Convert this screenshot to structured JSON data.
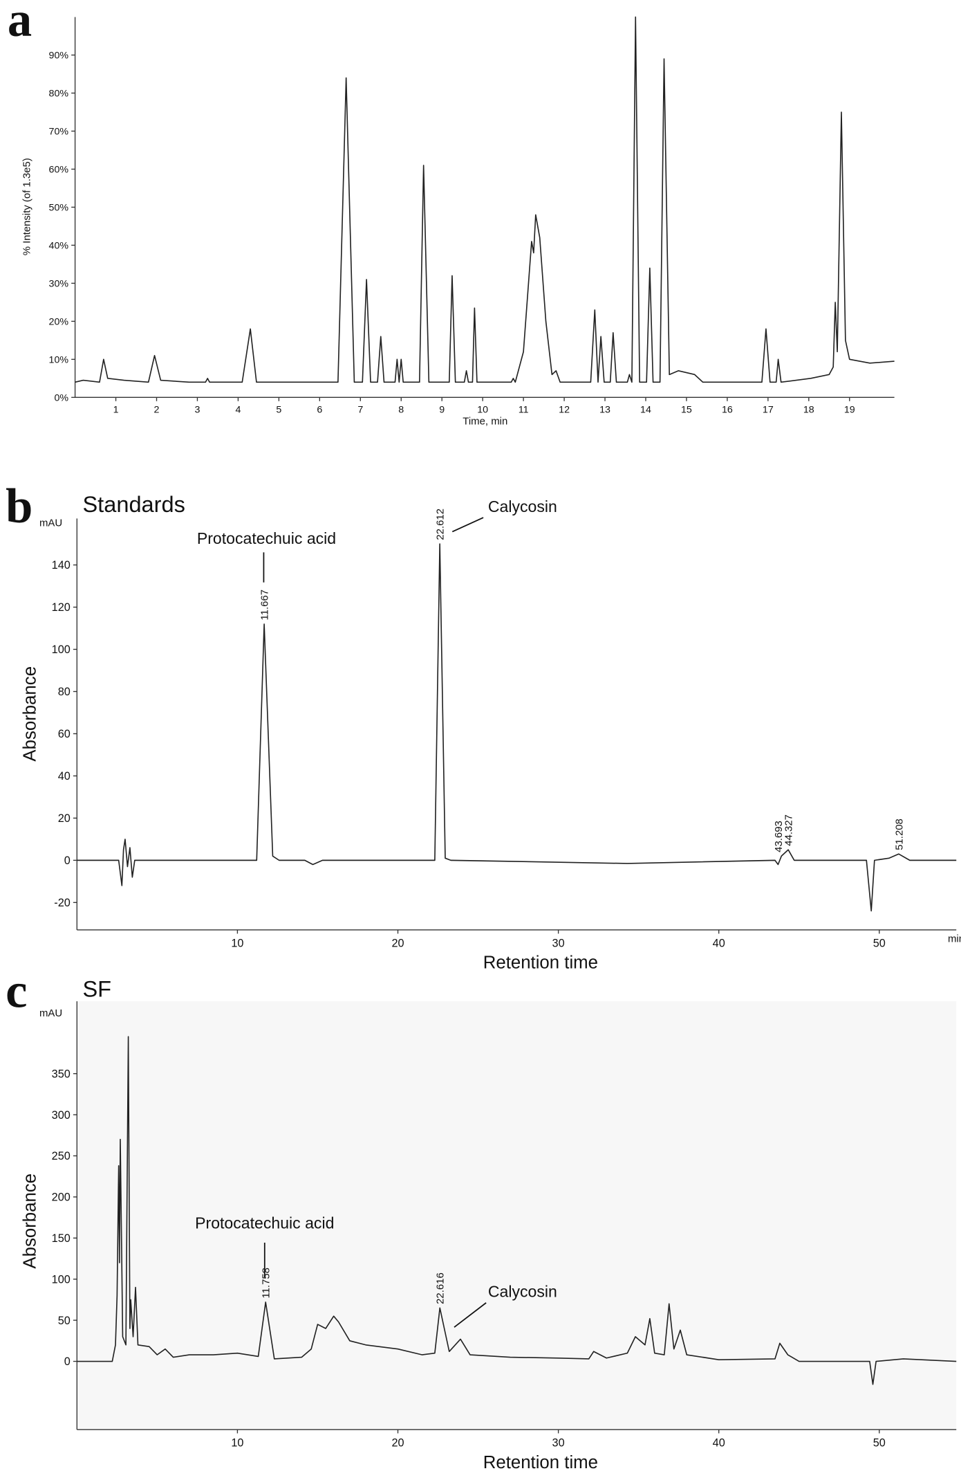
{
  "chart_data": [
    {
      "type": "line",
      "panel_label": "a",
      "ylabel": "% Intensity (of 1.3e5)",
      "xlabel": "Time, min",
      "xlim": [
        0,
        20.1
      ],
      "ylim": [
        0,
        100
      ],
      "xticks": [
        1,
        2,
        3,
        4,
        5,
        6,
        7,
        8,
        9,
        10,
        11,
        12,
        13,
        14,
        15,
        16,
        17,
        18,
        19
      ],
      "yticks": [
        {
          "value": 0,
          "label": "0%"
        },
        {
          "value": 10,
          "label": "10%"
        },
        {
          "value": 20,
          "label": "20%"
        },
        {
          "value": 30,
          "label": "30%"
        },
        {
          "value": 40,
          "label": "40%"
        },
        {
          "value": 50,
          "label": "50%"
        },
        {
          "value": 60,
          "label": "60%"
        },
        {
          "value": 70,
          "label": "70%"
        },
        {
          "value": 80,
          "label": "80%"
        },
        {
          "value": 90,
          "label": "90%"
        }
      ],
      "color": "#222222",
      "x": [
        0,
        0.2,
        0.6,
        0.7,
        0.8,
        1.2,
        1.8,
        1.95,
        2.1,
        2.8,
        3.2,
        3.25,
        3.3,
        4.1,
        4.3,
        4.45,
        6.45,
        6.65,
        6.85,
        7.05,
        7.15,
        7.25,
        7.42,
        7.5,
        7.58,
        7.85,
        7.9,
        7.95,
        8.0,
        8.05,
        8.45,
        8.55,
        8.68,
        9.18,
        9.25,
        9.33,
        9.55,
        9.6,
        9.65,
        9.75,
        9.8,
        9.86,
        10.7,
        10.75,
        10.8,
        11.0,
        11.2,
        11.25,
        11.3,
        11.4,
        11.55,
        11.7,
        11.8,
        11.9,
        12.65,
        12.75,
        12.83,
        12.9,
        12.98,
        13.13,
        13.2,
        13.28,
        13.55,
        13.6,
        13.66,
        13.75,
        13.85,
        14.02,
        14.1,
        14.18,
        14.35,
        14.45,
        14.58,
        14.8,
        15.2,
        15.4,
        16.85,
        16.95,
        17.05,
        17.2,
        17.25,
        17.32,
        18.05,
        18.5,
        18.6,
        18.65,
        18.7,
        18.8,
        18.9,
        19.0,
        19.5,
        20.1
      ],
      "values": [
        4,
        4.5,
        4,
        10,
        5,
        4.5,
        4,
        11,
        4.5,
        4,
        4,
        5,
        4,
        4,
        18,
        4,
        4,
        84,
        4,
        4,
        31,
        4,
        4,
        16,
        4,
        4,
        10,
        4,
        10,
        4,
        4,
        61,
        4,
        4,
        32,
        4,
        4,
        7,
        4,
        4,
        23.5,
        4,
        4,
        5,
        4,
        12,
        41,
        38,
        48,
        42,
        20,
        6,
        7,
        4,
        4,
        23,
        4,
        16,
        4,
        4,
        17,
        4,
        4,
        6,
        4,
        100,
        4,
        4,
        34,
        4,
        4,
        89,
        6,
        7,
        6,
        4,
        4,
        18,
        4,
        4,
        10,
        4,
        5,
        6,
        8,
        25,
        12,
        75,
        15,
        10,
        9,
        9.5
      ]
    },
    {
      "type": "line",
      "panel_label": "b",
      "title": "Standards",
      "ylabel": "Absorbance",
      "xlabel": "Retention time",
      "y_unit": "mAU",
      "x_unit": "min",
      "xlim": [
        0,
        54.8
      ],
      "ylim": [
        -33,
        162
      ],
      "xticks": [
        10,
        20,
        30,
        40,
        50
      ],
      "yticks": [
        -20,
        0,
        20,
        40,
        60,
        80,
        100,
        120,
        140
      ],
      "color": "#222222",
      "x": [
        0,
        2.6,
        2.8,
        2.9,
        3.0,
        3.15,
        3.3,
        3.45,
        3.6,
        11.2,
        11.667,
        12.2,
        12.6,
        14.2,
        14.7,
        15.3,
        22.3,
        22.612,
        22.95,
        23.3,
        34.3,
        43.5,
        43.693,
        43.9,
        44.327,
        44.7,
        49.2,
        49.5,
        49.7,
        50.6,
        51.208,
        51.9,
        54.8
      ],
      "values": [
        0,
        0,
        -12,
        5,
        10,
        -3,
        6,
        -8,
        0,
        0,
        112,
        2,
        0,
        0,
        -2,
        0,
        0,
        150,
        1,
        0,
        -1.5,
        0,
        -2,
        2,
        5,
        0,
        0,
        -24,
        0,
        1,
        3,
        0,
        0
      ],
      "peak_labels": [
        11.667,
        22.612,
        43.693,
        44.327,
        51.208
      ],
      "annotations": [
        "Protocatechuic acid",
        "Calycosin"
      ]
    },
    {
      "type": "line",
      "panel_label": "c",
      "title": "SF",
      "ylabel": "Absorbance",
      "xlabel": "Retention time",
      "y_unit": "mAU",
      "xlim": [
        0,
        54.8
      ],
      "ylim": [
        -83,
        438
      ],
      "xticks": [
        10,
        20,
        30,
        40,
        50
      ],
      "yticks": [
        0,
        50,
        100,
        150,
        200,
        250,
        300,
        350
      ],
      "color": "#222222",
      "background": "#f7f7f7",
      "x": [
        0,
        2.2,
        2.4,
        2.5,
        2.6,
        2.65,
        2.7,
        2.85,
        3.05,
        3.2,
        3.3,
        3.35,
        3.5,
        3.65,
        3.8,
        4.5,
        5,
        5.5,
        6,
        7,
        8.5,
        10,
        11.3,
        11.758,
        12.3,
        14,
        14.6,
        15,
        15.5,
        16,
        16.3,
        17,
        18,
        20,
        21.5,
        22.3,
        22.616,
        23.2,
        23.9,
        24.5,
        27,
        30,
        31.9,
        32.2,
        33,
        34.3,
        34.8,
        35.4,
        35.7,
        36,
        36.6,
        36.9,
        37.2,
        37.6,
        38,
        40,
        43.5,
        43.8,
        44.3,
        45,
        49.4,
        49.6,
        49.8,
        51.5,
        54.8
      ],
      "values": [
        0,
        0,
        20,
        80,
        238,
        120,
        270,
        30,
        20,
        395,
        40,
        75,
        30,
        90,
        20,
        18,
        8,
        15,
        5,
        8,
        8,
        10,
        6,
        72,
        3,
        5,
        15,
        45,
        40,
        55,
        48,
        25,
        20,
        15,
        8,
        10,
        65,
        12,
        27,
        8,
        5,
        4,
        3,
        12,
        4,
        10,
        30,
        20,
        52,
        10,
        8,
        70,
        15,
        38,
        8,
        2,
        3,
        22,
        8,
        0,
        0,
        -28,
        0,
        3,
        0
      ],
      "peak_labels": [
        11.758,
        22.616
      ],
      "annotations": [
        "Protocatechuic acid",
        "Calycosin"
      ]
    }
  ]
}
